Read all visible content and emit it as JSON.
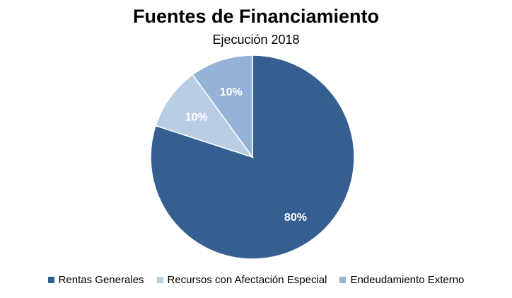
{
  "chart_data": {
    "type": "pie",
    "title": "Fuentes de Financiamiento",
    "subtitle": "Ejecución 2018",
    "categories": [
      "Rentas Generales",
      "Recursos con Afectación Especial",
      "Endeudamiento Externo"
    ],
    "values": [
      80,
      10,
      10
    ],
    "data_labels": [
      "80%",
      "10%",
      "10%"
    ],
    "colors": [
      "#365F91",
      "#B9CDE5",
      "#95B3D7"
    ],
    "label_color": "#ffffff",
    "legend_position": "bottom",
    "start_angle": "12 o'clock",
    "direction": "clockwise"
  }
}
